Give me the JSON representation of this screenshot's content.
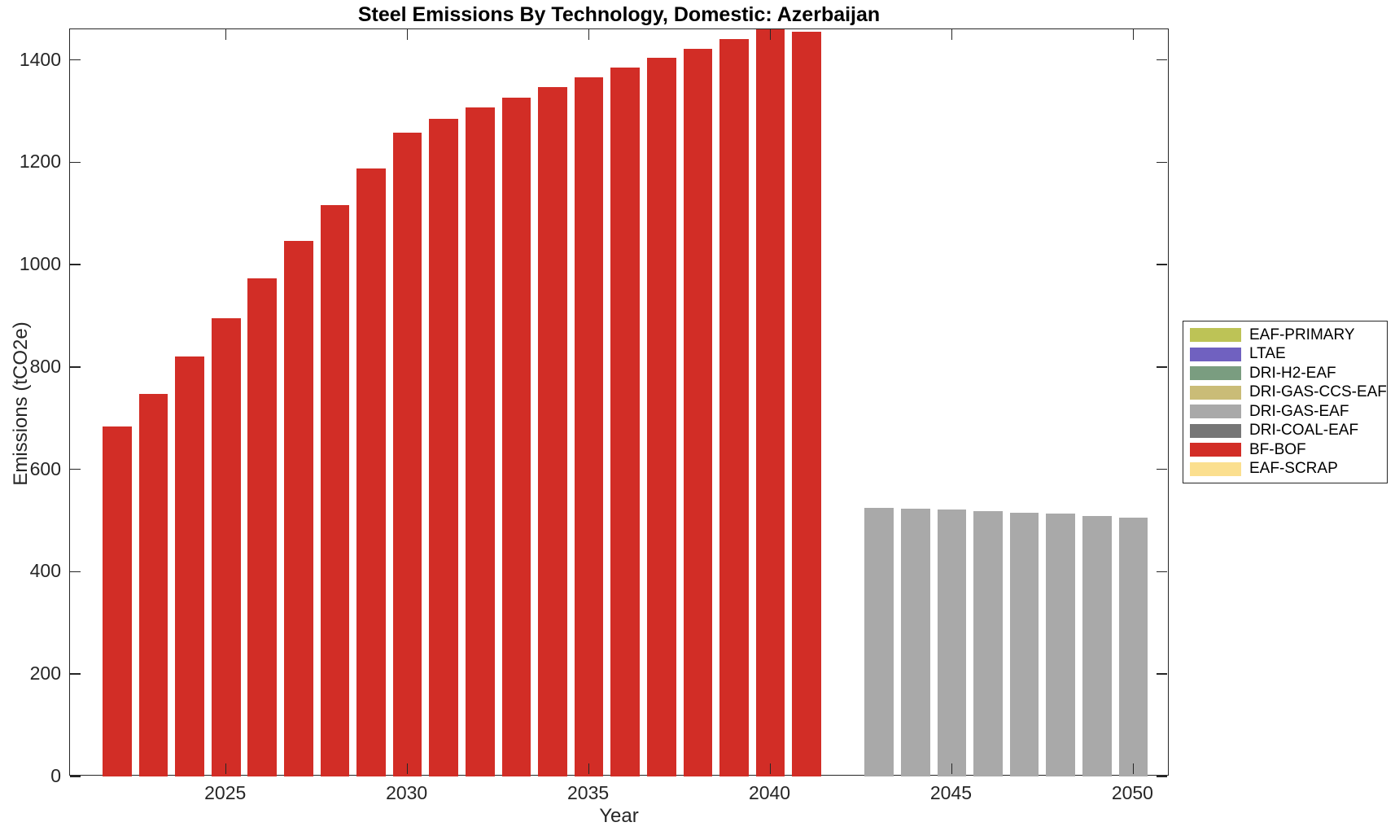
{
  "chart_data": {
    "type": "bar",
    "title": "Steel Emissions By Technology, Domestic: Azerbaijan",
    "xlabel": "Year",
    "ylabel": "Emissions (tCO2e)",
    "xlim": [
      2020.7,
      2051
    ],
    "ylim": [
      0,
      1460
    ],
    "x_ticks": [
      2025,
      2030,
      2035,
      2040,
      2045,
      2050
    ],
    "y_ticks": [
      0,
      200,
      400,
      600,
      800,
      1000,
      1200,
      1400
    ],
    "bar_width_fraction": 0.8,
    "grid": "off",
    "series": [
      {
        "name": "BF-BOF",
        "color": "#d22d26",
        "x": [
          2022,
          2023,
          2024,
          2025,
          2026,
          2027,
          2028,
          2029,
          2030,
          2031,
          2032,
          2033,
          2034,
          2035,
          2036,
          2037,
          2038,
          2039,
          2040,
          2041
        ],
        "values": [
          684,
          748,
          820,
          896,
          974,
          1047,
          1117,
          1188,
          1258,
          1285,
          1308,
          1327,
          1347,
          1366,
          1386,
          1404,
          1422,
          1441,
          1462,
          1455
        ]
      },
      {
        "name": "DRI-GAS-EAF",
        "color": "#a9a9a9",
        "x": [
          2043,
          2044,
          2045,
          2046,
          2047,
          2048,
          2049,
          2050
        ],
        "values": [
          525,
          523,
          521,
          518,
          516,
          513,
          509,
          505
        ]
      }
    ],
    "legend": {
      "position": "outside-right",
      "items": [
        {
          "label": "EAF-PRIMARY",
          "color": "#bdc356"
        },
        {
          "label": "LTAE",
          "color": "#7061c0"
        },
        {
          "label": "DRI-H2-EAF",
          "color": "#7a9d80"
        },
        {
          "label": "DRI-GAS-CCS-EAF",
          "color": "#cabc77"
        },
        {
          "label": "DRI-GAS-EAF",
          "color": "#a9a9a9"
        },
        {
          "label": "DRI-COAL-EAF",
          "color": "#767676"
        },
        {
          "label": "BF-BOF",
          "color": "#d22d26"
        },
        {
          "label": "EAF-SCRAP",
          "color": "#fbdf8f"
        }
      ]
    }
  }
}
